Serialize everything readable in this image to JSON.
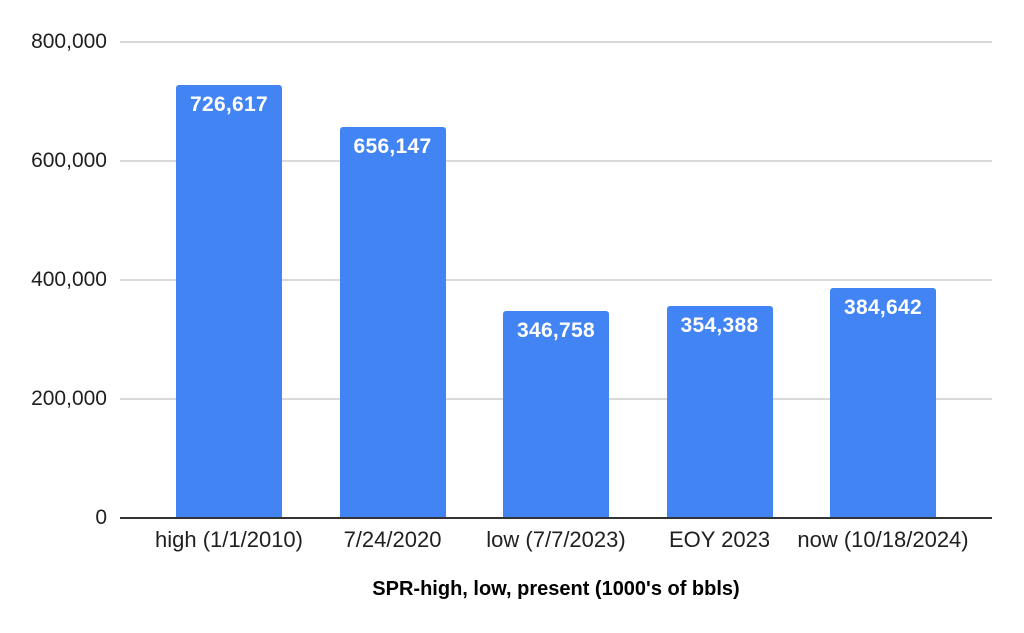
{
  "chart_data": {
    "type": "bar",
    "title": "SPR-high, low, present (1000's of bbls)",
    "title_position": "bottom-center",
    "categories": [
      "high (1/1/2010)",
      "7/24/2020",
      "low (7/7/2023)",
      "EOY 2023",
      "now (10/18/2024)"
    ],
    "values": [
      726617,
      656147,
      346758,
      354388,
      384642
    ],
    "value_labels": [
      "726,617",
      "656,147",
      "346,758",
      "354,388",
      "384,642"
    ],
    "y_tick_labels": [
      "800,000",
      "600,000",
      "400,000",
      "200,000",
      "0"
    ],
    "y_tick_values": [
      800000,
      600000,
      400000,
      200000,
      0
    ],
    "ylim": [
      0,
      800000
    ],
    "xlabel": "SPR-high, low, present (1000's of bbls)",
    "ylabel": "",
    "grid": true,
    "legend": "none",
    "colors": {
      "bar": "#4384f4",
      "bar_value_text": "#ffffff",
      "gridline": "#d9d9d9",
      "baseline": "#333333",
      "tick_text": "#1f1f1f",
      "title_text": "#000000",
      "background": "#ffffff"
    }
  }
}
